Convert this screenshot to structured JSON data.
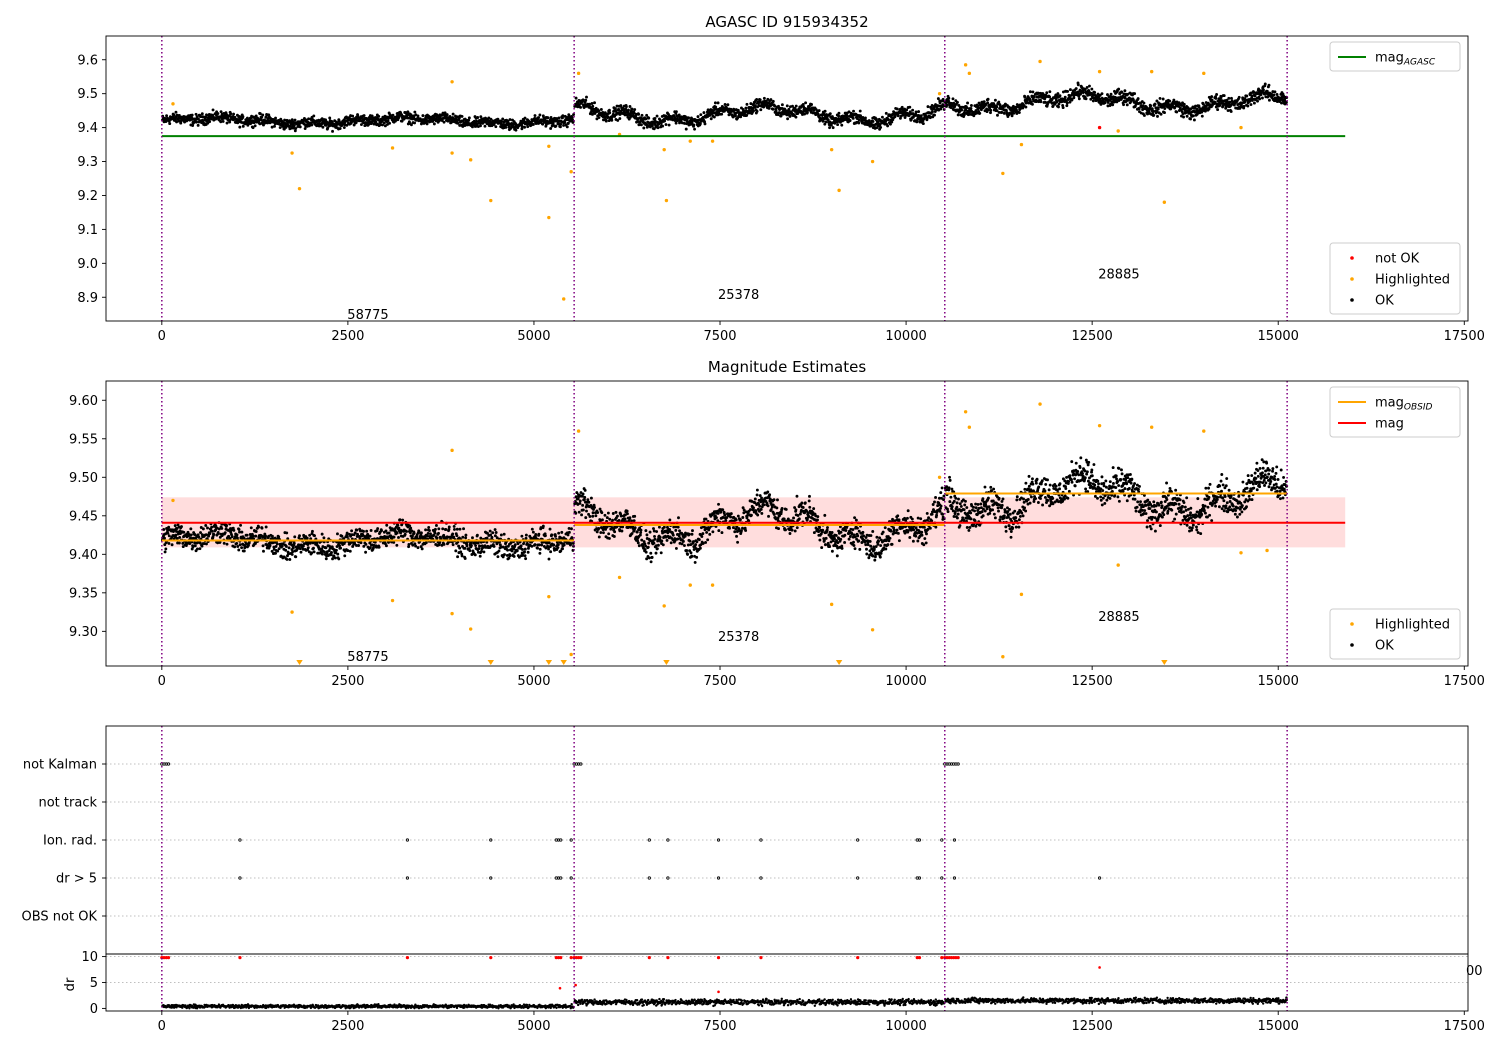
{
  "chart_data": [
    {
      "type": "scatter",
      "title": "AGASC ID 915934352",
      "xlabel": "",
      "ylabel": "",
      "xlim": [
        -750,
        17550
      ],
      "ylim": [
        8.83,
        9.67
      ],
      "xticks": [
        0,
        2500,
        5000,
        7500,
        10000,
        12500,
        15000,
        17500
      ],
      "xtick_labels": [
        "0",
        "2500",
        "5000",
        "7500",
        "10000",
        "12500",
        "15000",
        "17500"
      ],
      "yticks": [
        8.9,
        9.0,
        9.1,
        9.2,
        9.3,
        9.4,
        9.5,
        9.6
      ],
      "ytick_labels": [
        "8.9",
        "9.0",
        "9.1",
        "9.2",
        "9.3",
        "9.4",
        "9.5",
        "9.6"
      ],
      "obsid_boundaries": [
        0,
        5540,
        10520,
        15120
      ],
      "obsid_labels": [
        {
          "text": "58775",
          "x": 2770,
          "y": 8.85
        },
        {
          "text": "25378",
          "x": 7750,
          "y": 8.91
        },
        {
          "text": "28885",
          "x": 12860,
          "y": 8.97
        }
      ],
      "hlines": [
        {
          "name": "mag_AGASC",
          "y": 9.375,
          "x0": 0,
          "x1": 15900,
          "color": "#008000"
        }
      ],
      "segments": [
        {
          "x0": 0,
          "x1": 5540,
          "base": 9.42,
          "amp": 0.008,
          "noise": 0.012
        },
        {
          "x0": 5540,
          "x1": 10520,
          "base": 9.44,
          "amp": 0.02,
          "noise": 0.014
        },
        {
          "x0": 10520,
          "x1": 15120,
          "base": 9.475,
          "amp": 0.02,
          "noise": 0.016
        }
      ],
      "highlighted": [
        [
          150,
          9.47
        ],
        [
          1750,
          9.325
        ],
        [
          1850,
          9.22
        ],
        [
          3100,
          9.34
        ],
        [
          3900,
          9.535
        ],
        [
          3900,
          9.325
        ],
        [
          4150,
          9.305
        ],
        [
          4420,
          9.185
        ],
        [
          5200,
          9.345
        ],
        [
          5200,
          9.135
        ],
        [
          5400,
          8.895
        ],
        [
          5500,
          9.27
        ],
        [
          5600,
          9.56
        ],
        [
          6150,
          9.38
        ],
        [
          6750,
          9.335
        ],
        [
          6780,
          9.185
        ],
        [
          7100,
          9.36
        ],
        [
          7400,
          9.36
        ],
        [
          9000,
          9.335
        ],
        [
          9100,
          9.215
        ],
        [
          9550,
          9.3
        ],
        [
          10450,
          9.5
        ],
        [
          11300,
          9.265
        ],
        [
          11550,
          9.35
        ],
        [
          12850,
          9.39
        ],
        [
          13470,
          9.18
        ],
        [
          10800,
          9.585
        ],
        [
          10850,
          9.56
        ],
        [
          11800,
          9.595
        ],
        [
          12600,
          9.565
        ],
        [
          13300,
          9.565
        ],
        [
          14000,
          9.56
        ],
        [
          14500,
          9.4
        ]
      ],
      "not_ok": [
        [
          12600,
          9.4
        ]
      ],
      "legends": [
        {
          "position": "upper right",
          "entries": [
            {
              "label": "mag",
              "sub": "AGASC",
              "kind": "line",
              "color": "#008000"
            }
          ]
        },
        {
          "position": "lower right",
          "entries": [
            {
              "label": "not OK",
              "kind": "point",
              "color": "#ff0000"
            },
            {
              "label": "Highlighted",
              "kind": "point",
              "color": "#ffa500"
            },
            {
              "label": "OK",
              "kind": "point",
              "color": "#000000"
            }
          ]
        }
      ]
    },
    {
      "type": "scatter",
      "title": "Magnitude Estimates",
      "xlabel": "",
      "ylabel": "",
      "xlim": [
        -750,
        17550
      ],
      "ylim": [
        9.255,
        9.625
      ],
      "xticks": [
        0,
        2500,
        5000,
        7500,
        10000,
        12500,
        15000,
        17500
      ],
      "xtick_labels": [
        "0",
        "2500",
        "5000",
        "7500",
        "10000",
        "12500",
        "15000",
        "17500"
      ],
      "yticks": [
        9.3,
        9.35,
        9.4,
        9.45,
        9.5,
        9.55,
        9.6
      ],
      "ytick_labels": [
        "9.30",
        "9.35",
        "9.40",
        "9.45",
        "9.50",
        "9.55",
        "9.60"
      ],
      "obsid_boundaries": [
        0,
        5540,
        10520,
        15120
      ],
      "obsid_labels": [
        {
          "text": "58775",
          "x": 2770,
          "y": 9.268
        },
        {
          "text": "25378",
          "x": 7750,
          "y": 9.294
        },
        {
          "text": "28885",
          "x": 12860,
          "y": 9.32
        }
      ],
      "mag_band": {
        "x0": 0,
        "x1": 15900,
        "y0": 9.409,
        "y1": 9.474,
        "color": "#ffdddd"
      },
      "hlines": [
        {
          "name": "mag",
          "y": 9.441,
          "x0": 0,
          "x1": 15900,
          "color": "#ff0000"
        },
        {
          "name": "mag_OBSID",
          "y": 9.418,
          "x0": 0,
          "x1": 5540,
          "color": "#ffa500"
        },
        {
          "name": "mag_OBSID",
          "y": 9.438,
          "x0": 5540,
          "x1": 10520,
          "color": "#ffa500"
        },
        {
          "name": "mag_OBSID",
          "y": 9.479,
          "x0": 10520,
          "x1": 15120,
          "color": "#ffa500"
        }
      ],
      "segments": [
        {
          "x0": 0,
          "x1": 5540,
          "base": 9.418,
          "amp": 0.008,
          "noise": 0.012
        },
        {
          "x0": 5540,
          "x1": 10520,
          "base": 9.438,
          "amp": 0.02,
          "noise": 0.014
        },
        {
          "x0": 10520,
          "x1": 15120,
          "base": 9.475,
          "amp": 0.02,
          "noise": 0.016
        }
      ],
      "highlighted": [
        [
          150,
          9.47
        ],
        [
          1750,
          9.325
        ],
        [
          3100,
          9.34
        ],
        [
          3900,
          9.535
        ],
        [
          3900,
          9.323
        ],
        [
          4150,
          9.303
        ],
        [
          5200,
          9.345
        ],
        [
          5500,
          9.27
        ],
        [
          5600,
          9.56
        ],
        [
          6150,
          9.37
        ],
        [
          6750,
          9.333
        ],
        [
          7100,
          9.36
        ],
        [
          7400,
          9.36
        ],
        [
          9000,
          9.335
        ],
        [
          9550,
          9.302
        ],
        [
          10450,
          9.5
        ],
        [
          11300,
          9.267
        ],
        [
          11550,
          9.348
        ],
        [
          12850,
          9.386
        ],
        [
          10800,
          9.585
        ],
        [
          10850,
          9.565
        ],
        [
          11800,
          9.595
        ],
        [
          12600,
          9.567
        ],
        [
          13300,
          9.565
        ],
        [
          14000,
          9.56
        ],
        [
          14500,
          9.402
        ],
        [
          14850,
          9.405
        ]
      ],
      "clipped_below": [
        1850,
        4420,
        5200,
        5400,
        6780,
        9100,
        13470
      ],
      "legends": [
        {
          "position": "upper right",
          "entries": [
            {
              "label": "mag",
              "sub": "OBSID",
              "kind": "line",
              "color": "#ffa500"
            },
            {
              "label": "mag",
              "kind": "line",
              "color": "#ff0000"
            }
          ]
        },
        {
          "position": "lower right",
          "entries": [
            {
              "label": "Highlighted",
              "kind": "point",
              "color": "#ffa500"
            },
            {
              "label": "OK",
              "kind": "point",
              "color": "#000000"
            }
          ]
        }
      ]
    },
    {
      "type": "scatter",
      "title": "",
      "xlabel": "",
      "ylabel": "",
      "xlim": [
        -750,
        17550
      ],
      "categories": [
        "not Kalman",
        "not track",
        "Ion. rad.",
        "dr > 5",
        "OBS not OK"
      ],
      "obsid_boundaries": [
        0,
        5540,
        10520,
        15120
      ],
      "flags": {
        "not Kalman": [
          0,
          30,
          60,
          90,
          5540,
          5570,
          5600,
          5630,
          10520,
          10550,
          10580,
          10610,
          10640,
          10670,
          10700
        ],
        "not track": [],
        "Ion. rad.": [
          1050,
          3300,
          4420,
          5300,
          5330,
          5360,
          5500,
          6550,
          6800,
          7480,
          8050,
          9350,
          10150,
          10180,
          10480,
          10650
        ],
        "dr > 5": [
          1050,
          3300,
          4420,
          5300,
          5330,
          5360,
          5500,
          6550,
          6800,
          7480,
          8050,
          9350,
          10150,
          10180,
          10480,
          10650,
          12600
        ],
        "OBS not OK": []
      }
    },
    {
      "type": "scatter",
      "title": "",
      "xlabel": "",
      "ylabel": "dr",
      "xlim": [
        -750,
        17550
      ],
      "ylim": [
        -0.5,
        10.5
      ],
      "xticks": [
        0,
        2500,
        5000,
        7500,
        10000,
        12500,
        15000,
        17500
      ],
      "xtick_labels": [
        "0",
        "2500",
        "5000",
        "7500",
        "10000",
        "12500",
        "15000",
        "17500"
      ],
      "yticks": [
        0,
        5,
        10
      ],
      "ytick_labels": [
        "0",
        "5",
        "10"
      ],
      "obsid_boundaries": [
        0,
        5540,
        10520,
        15120
      ],
      "segments": [
        {
          "x0": 0,
          "x1": 5540,
          "base": 0.4,
          "noise": 0.25
        },
        {
          "x0": 5540,
          "x1": 10520,
          "base": 1.2,
          "noise": 0.4
        },
        {
          "x0": 10520,
          "x1": 15120,
          "base": 1.5,
          "noise": 0.4
        }
      ],
      "clipped_dr": [
        0,
        30,
        60,
        90,
        1050,
        3300,
        4420,
        5300,
        5330,
        5360,
        5500,
        5540,
        5570,
        5600,
        5630,
        6550,
        6800,
        7480,
        8050,
        9350,
        10150,
        10180,
        10480,
        10520,
        10550,
        10580,
        10610,
        10640,
        10670,
        10700
      ],
      "outliers": [
        [
          12600,
          7.9
        ],
        [
          5560,
          4.5
        ],
        [
          5350,
          3.9
        ],
        [
          7480,
          3.2
        ]
      ],
      "stray_tick_label": "00"
    }
  ]
}
